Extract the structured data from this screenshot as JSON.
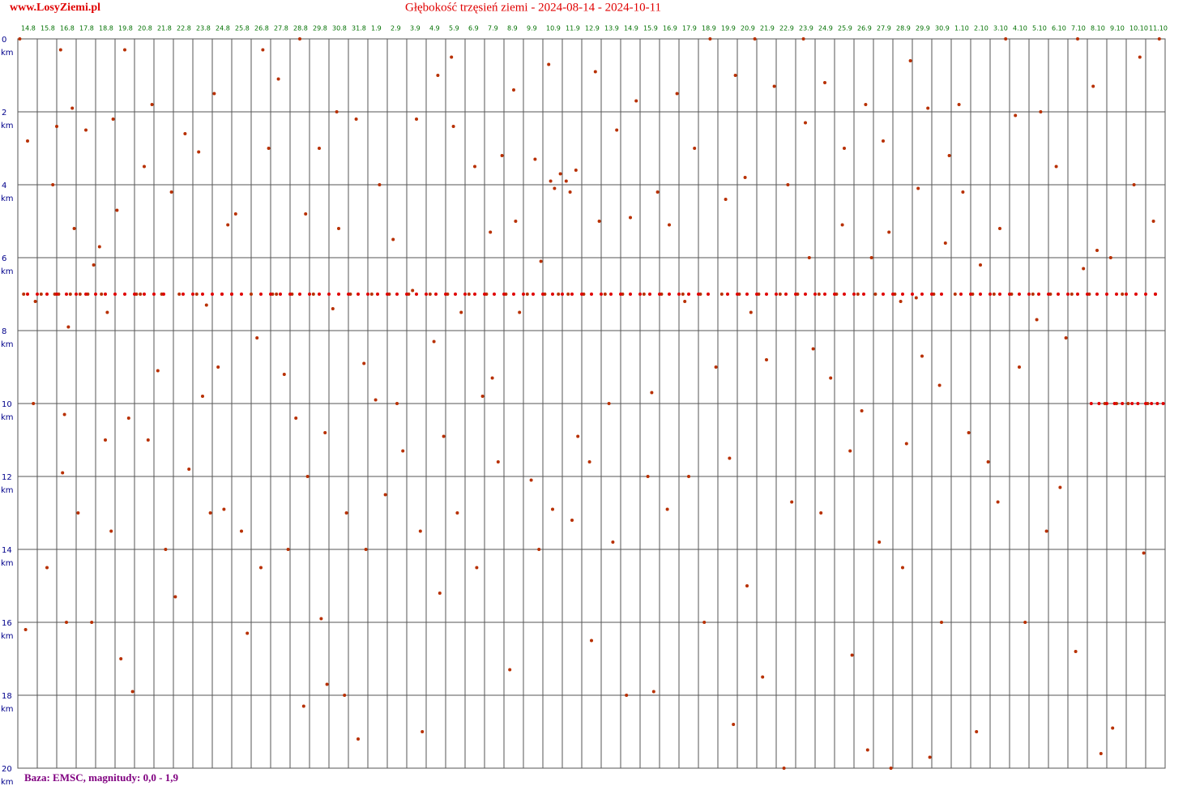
{
  "chart_data": {
    "type": "scatter",
    "site": "www.LosyZiemi.pl",
    "title": "Głębokość trzęsień ziemi - 2024-08-14 - 2024-10-11",
    "footer": "Baza: EMSC, magnitudy: 0,0 - 1,9",
    "y_unit": "km",
    "y_inverted": true,
    "grid": true,
    "xlim": [
      0,
      59
    ],
    "ylim": [
      0,
      20
    ],
    "yticks": [
      0,
      2,
      4,
      6,
      8,
      10,
      12,
      14,
      16,
      18,
      20
    ],
    "xticks": [
      {
        "value": 0,
        "label": "14.8"
      },
      {
        "value": 1,
        "label": "15.8"
      },
      {
        "value": 2,
        "label": "16.8"
      },
      {
        "value": 3,
        "label": "17.8"
      },
      {
        "value": 4,
        "label": "18.8"
      },
      {
        "value": 5,
        "label": "19.8"
      },
      {
        "value": 6,
        "label": "20.8"
      },
      {
        "value": 7,
        "label": "21.8"
      },
      {
        "value": 8,
        "label": "22.8"
      },
      {
        "value": 9,
        "label": "23.8"
      },
      {
        "value": 10,
        "label": "24.8"
      },
      {
        "value": 11,
        "label": "25.8"
      },
      {
        "value": 12,
        "label": "26.8"
      },
      {
        "value": 13,
        "label": "27.8"
      },
      {
        "value": 14,
        "label": "28.8"
      },
      {
        "value": 15,
        "label": "29.8"
      },
      {
        "value": 16,
        "label": "30.8"
      },
      {
        "value": 17,
        "label": "31.8"
      },
      {
        "value": 18,
        "label": "1.9"
      },
      {
        "value": 19,
        "label": "2.9"
      },
      {
        "value": 20,
        "label": "3.9"
      },
      {
        "value": 21,
        "label": "4.9"
      },
      {
        "value": 22,
        "label": "5.9"
      },
      {
        "value": 23,
        "label": "6.9"
      },
      {
        "value": 24,
        "label": "7.9"
      },
      {
        "value": 25,
        "label": "8.9"
      },
      {
        "value": 26,
        "label": "9.9"
      },
      {
        "value": 27,
        "label": "10.9"
      },
      {
        "value": 28,
        "label": "11.9"
      },
      {
        "value": 29,
        "label": "12.9"
      },
      {
        "value": 30,
        "label": "13.9"
      },
      {
        "value": 31,
        "label": "14.9"
      },
      {
        "value": 32,
        "label": "15.9"
      },
      {
        "value": 33,
        "label": "16.9"
      },
      {
        "value": 34,
        "label": "17.9"
      },
      {
        "value": 35,
        "label": "18.9"
      },
      {
        "value": 36,
        "label": "19.9"
      },
      {
        "value": 37,
        "label": "20.9"
      },
      {
        "value": 38,
        "label": "21.9"
      },
      {
        "value": 39,
        "label": "22.9"
      },
      {
        "value": 40,
        "label": "23.9"
      },
      {
        "value": 41,
        "label": "24.9"
      },
      {
        "value": 42,
        "label": "25.9"
      },
      {
        "value": 43,
        "label": "26.9"
      },
      {
        "value": 44,
        "label": "27.9"
      },
      {
        "value": 45,
        "label": "28.9"
      },
      {
        "value": 46,
        "label": "29.9"
      },
      {
        "value": 47,
        "label": "30.9"
      },
      {
        "value": 48,
        "label": "1.10"
      },
      {
        "value": 49,
        "label": "2.10"
      },
      {
        "value": 50,
        "label": "3.10"
      },
      {
        "value": 51,
        "label": "4.10"
      },
      {
        "value": 52,
        "label": "5.10"
      },
      {
        "value": 53,
        "label": "6.10"
      },
      {
        "value": 54,
        "label": "7.10"
      },
      {
        "value": 55,
        "label": "8.10"
      },
      {
        "value": 56,
        "label": "9.10"
      },
      {
        "value": 57,
        "label": "10.10"
      },
      {
        "value": 58,
        "label": "11.10"
      }
    ],
    "series": [
      {
        "color": "#b83000",
        "x": [
          0.1,
          0.3,
          0.5,
          0.8,
          0.4,
          1.2,
          1.5,
          1.8,
          0.9,
          1.9,
          2.0,
          2.3,
          2.5,
          2.2,
          2.7,
          2.1,
          2.4,
          2.6,
          2.8,
          2.9,
          3.1,
          3.2,
          3.5,
          3.8,
          3.6,
          3.9,
          4.2,
          4.5,
          4.8,
          4.3,
          4.9,
          4.6,
          5.1,
          5.5,
          5.9,
          5.3,
          5.7,
          6.1,
          6.3,
          6.7,
          6.5,
          6.9,
          7.2,
          7.6,
          7.4,
          7.9,
          8.3,
          8.6,
          8.8,
          8.1,
          9.2,
          9.5,
          9.9,
          9.3,
          9.7,
          10.1,
          10.5,
          10.8,
          10.3,
          10.6,
          11.2,
          11.5,
          11.8,
          11.0,
          12.0,
          12.3,
          12.6,
          12.9,
          12.5,
          13.1,
          13.4,
          13.7,
          13.9,
          13.3,
          14.1,
          14.5,
          14.8,
          14.3,
          14.7,
          14.9,
          15.2,
          15.5,
          15.8,
          15.6,
          15.9,
          16.2,
          16.5,
          16.8,
          16.4,
          16.9,
          17.1,
          17.4,
          17.8,
          17.5,
          17.9,
          18.2,
          18.6,
          18.9,
          18.4,
          19.1,
          19.5,
          19.8,
          19.3,
          20.1,
          20.5,
          20.7,
          20.3,
          20.8,
          21.2,
          21.6,
          21.9,
          21.4,
          21.7,
          22.1,
          22.4,
          22.8,
          22.6,
          22.3,
          23.2,
          23.5,
          23.9,
          23.6,
          24.1,
          24.4,
          24.7,
          24.9,
          24.3,
          25.1,
          25.5,
          25.8,
          25.3,
          25.6,
          26.2,
          26.6,
          26.9,
          26.4,
          26.8,
          27.1,
          27.4,
          27.6,
          27.9,
          27.3,
          27.5,
          27.8,
          28.2,
          28.4,
          28.7,
          28.3,
          28.8,
          28.5,
          29.1,
          29.4,
          29.7,
          29.9,
          29.5,
          30.2,
          30.6,
          30.8,
          30.4,
          31.1,
          31.5,
          31.8,
          31.3,
          32.2,
          32.6,
          32.9,
          32.4,
          32.7,
          33.1,
          33.5,
          33.9,
          33.4,
          34.2,
          34.5,
          34.8,
          34.3,
          35.1,
          35.6,
          35.9,
          35.3,
          36.2,
          36.6,
          36.8,
          36.4,
          36.9,
          37.1,
          37.4,
          37.7,
          37.9,
          37.5,
          38.1,
          38.5,
          38.9,
          38.3,
          39.2,
          39.6,
          39.8,
          39.4,
          40.1,
          40.4,
          40.7,
          40.9,
          40.5,
          41.2,
          41.5,
          41.8,
          41.3,
          42.1,
          42.5,
          42.8,
          42.4,
          42.9,
          43.2,
          43.6,
          43.9,
          43.4,
          43.7,
          44.1,
          44.5,
          44.8,
          44.3,
          44.9,
          45.1,
          45.4,
          45.7,
          45.9,
          45.5,
          46.2,
          46.5,
          46.8,
          46.3,
          46.9,
          47.1,
          47.4,
          47.7,
          47.9,
          47.5,
          48.2,
          48.6,
          48.9,
          48.4,
          49.1,
          49.5,
          49.9,
          49.3,
          50.2,
          50.5,
          50.8,
          50.4,
          51.1,
          51.5,
          51.8,
          51.3,
          52.2,
          52.6,
          52.9,
          52.4,
          53.1,
          53.4,
          53.9,
          53.6,
          54.2,
          54.5,
          54.8,
          54.4,
          55.1,
          55.5,
          55.9,
          55.3,
          55.7,
          56.2,
          56.5,
          56.8,
          56.3,
          57.1,
          57.4,
          57.7,
          57.9,
          58.1,
          58.4,
          58.7,
          58.5
        ],
        "values": [
          0,
          7,
          2.8,
          10,
          16.2,
          7,
          14.5,
          4,
          7.2,
          7,
          2.4,
          11.9,
          16,
          0.3,
          7,
          7,
          10.3,
          7.9,
          1.9,
          5.2,
          13,
          7,
          2.5,
          16,
          7,
          6.2,
          5.7,
          11,
          13.5,
          7,
          2.2,
          7.5,
          4.7,
          0.3,
          17.9,
          17,
          10.4,
          7,
          7,
          11,
          3.5,
          1.8,
          9.1,
          14,
          7,
          4.2,
          7,
          2.6,
          11.8,
          15.3,
          7,
          9.8,
          13,
          3.1,
          7.3,
          1.5,
          7,
          5.1,
          9,
          12.9,
          4.8,
          13.5,
          16.3,
          7,
          7,
          8.2,
          0.3,
          3,
          14.5,
          7,
          1.1,
          9.2,
          14,
          7,
          7,
          0,
          4.8,
          10.4,
          18.3,
          12,
          7,
          3,
          10.8,
          15.9,
          17.7,
          7.4,
          5.2,
          18,
          2,
          13,
          7,
          2.2,
          8.9,
          19.2,
          14,
          7,
          4,
          12.5,
          9.9,
          7,
          10,
          11.3,
          5.5,
          7,
          2.2,
          13.5,
          6.9,
          19,
          7,
          1,
          10.9,
          8.3,
          15.2,
          7,
          2.4,
          7.5,
          13,
          0.5,
          7,
          3.5,
          9.8,
          14.5,
          7,
          9.3,
          11.6,
          3.2,
          5.3,
          7,
          1.4,
          7.5,
          17.3,
          5,
          7,
          3.3,
          6.1,
          12.1,
          14,
          7,
          3.9,
          4.1,
          3.7,
          0.7,
          12.9,
          7,
          3.9,
          4.2,
          3.6,
          7,
          10.9,
          13.2,
          7,
          11.6,
          0.9,
          5,
          16.5,
          7,
          13.8,
          2.5,
          10,
          7,
          4.9,
          1.7,
          18,
          7,
          9.7,
          4.2,
          12,
          17.9,
          7,
          5.1,
          1.5,
          12.9,
          7,
          12,
          3,
          7.2,
          7,
          0,
          9,
          16,
          7,
          11.5,
          18.8,
          4.4,
          1,
          7,
          3.8,
          7.5,
          0,
          15,
          7,
          8.8,
          1.3,
          17.5,
          7,
          4,
          12.7,
          20,
          7,
          0,
          6,
          8.5,
          2.3,
          7,
          1.2,
          9.3,
          13,
          7,
          3,
          11.3,
          5.1,
          16.9,
          7,
          1.8,
          6,
          10.2,
          19.5,
          7,
          2.8,
          5.3,
          13.8,
          20,
          7,
          7.2,
          11.1,
          0.6,
          14.5,
          7.1,
          8.7,
          1.9,
          4.1,
          19.7,
          7,
          9.5,
          5.6,
          3.2,
          16,
          7,
          4.2,
          10.8,
          1.8,
          7,
          6.2,
          11.6,
          19,
          7,
          5.2,
          0,
          12.7,
          7,
          9,
          16,
          2.1,
          7,
          2,
          13.5,
          7.7,
          7,
          3.5,
          8.2,
          12.3,
          7,
          0,
          6.3,
          16.8,
          7,
          5.8,
          10,
          1.3,
          19.6,
          6,
          10,
          7,
          18.9,
          10,
          4,
          0.5,
          14.1,
          10,
          5,
          0,
          7
        ]
      },
      {
        "color": "#e00000",
        "x": [
          0.5,
          1.0,
          1.5,
          2.0,
          2.5,
          3.0,
          3.5,
          4.0,
          4.5,
          5.0,
          5.5,
          6.0,
          6.5,
          7.0,
          7.5,
          8.5,
          9.0,
          9.5,
          10.0,
          10.5,
          11.0,
          11.5,
          12.5,
          13.0,
          13.5,
          14.0,
          14.5,
          15.0,
          15.5,
          16.0,
          16.5,
          17.0,
          17.5,
          18.0,
          18.5,
          19.0,
          19.5,
          20.0,
          20.5,
          21.0,
          21.5,
          22.0,
          22.5,
          23.0,
          23.5,
          24.0,
          24.5,
          25.0,
          25.5,
          26.0,
          26.5,
          27.0,
          27.5,
          28.0,
          28.5,
          29.0,
          29.5,
          30.0,
          30.5,
          31.0,
          31.5,
          32.0,
          32.5,
          33.0,
          33.5,
          34.0,
          34.5,
          35.0,
          35.5,
          36.5,
          37.0,
          37.5,
          38.0,
          38.5,
          39.0,
          39.5,
          40.0,
          40.5,
          41.0,
          41.5,
          42.0,
          42.5,
          43.0,
          43.5,
          44.5,
          45.0,
          45.5,
          46.0,
          46.5,
          47.0,
          47.5,
          48.5,
          49.0,
          49.5,
          50.0,
          50.5,
          51.0,
          51.5,
          52.0,
          52.5,
          53.0,
          53.5,
          54.0,
          54.5,
          55.0,
          55.5,
          56.0,
          56.5,
          57.0,
          57.5,
          58.0,
          58.5
        ],
        "values": [
          7,
          7,
          7,
          7,
          7,
          7,
          7,
          7,
          7,
          7,
          7,
          7,
          7,
          7,
          7,
          7,
          7,
          7,
          7,
          7,
          7,
          7,
          7,
          7,
          7,
          7,
          7,
          7,
          7,
          7,
          7,
          7,
          7,
          7,
          7,
          7,
          7,
          7,
          7,
          7,
          7,
          7,
          7,
          7,
          7,
          7,
          7,
          7,
          7,
          7,
          7,
          7,
          7,
          7,
          7,
          7,
          7,
          7,
          7,
          7,
          7,
          7,
          7,
          7,
          7,
          7,
          7,
          7,
          7,
          7,
          7,
          7,
          7,
          7,
          7,
          7,
          7,
          7,
          7,
          7,
          7,
          7,
          7,
          7,
          7,
          7,
          7,
          7,
          7,
          7,
          7,
          7,
          7,
          7,
          7,
          7,
          7,
          7,
          7,
          7,
          7,
          7,
          7,
          7,
          7,
          7,
          7,
          7,
          7,
          7,
          7,
          7
        ]
      },
      {
        "color": "#e00000",
        "x": [
          55.2,
          55.6,
          56.0,
          56.4,
          56.8,
          57.3,
          57.6,
          58.0,
          58.3,
          58.6,
          58.9
        ],
        "values": [
          10,
          10,
          10,
          10,
          10,
          10,
          10,
          10,
          10,
          10,
          10
        ]
      }
    ]
  }
}
